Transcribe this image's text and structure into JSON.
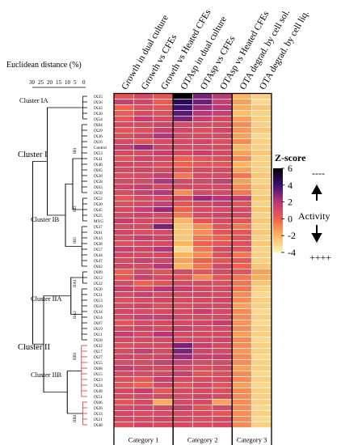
{
  "chart_data": {
    "type": "heatmap",
    "title": "",
    "columns": [
      "Growth in dual culture",
      "Growth vs CFEs",
      "Growth vs Heated CFEs",
      "OTAsp in dual culture",
      "OTAsp vs CFEs",
      "OTAsp vs Heated CFEs",
      "OTA degrad. by cell sol.",
      "OTA degrad. by cell liq."
    ],
    "column_groups": [
      {
        "label": "Category 1",
        "columns": [
          0,
          1,
          2
        ]
      },
      {
        "label": "Category 2",
        "columns": [
          3,
          4,
          5
        ]
      },
      {
        "label": "Category 3",
        "columns": [
          6,
          7
        ]
      }
    ],
    "rows": [
      "IX35",
      "IX56",
      "IX42",
      "IX30",
      "IX54",
      "IX04",
      "IX29",
      "IX36",
      "IX16",
      "Control",
      "IX53",
      "IX41",
      "IX40",
      "IX05",
      "IX28",
      "IX58",
      "IX03",
      "IX59",
      "IX52",
      "IX20",
      "IX45",
      "IX25",
      "MYG",
      "IX37",
      "IX01",
      "IX43",
      "IX38",
      "IX57",
      "IX44",
      "IX47",
      "IX02",
      "IX09",
      "IX12",
      "IX22",
      "IX50",
      "IX31",
      "IX13",
      "IX10",
      "IX34",
      "IX14",
      "IX07",
      "IX19",
      "IX11",
      "IX18",
      "IX32",
      "IX17",
      "IX27",
      "IX55",
      "IX08",
      "IX15",
      "IX23",
      "IX24",
      "IX49",
      "IX51",
      "IX06",
      "IX26",
      "IX33",
      "IX21",
      "IX48"
    ],
    "values": [
      [
        0.5,
        1.0,
        0.5,
        6.0,
        3.0,
        1.8,
        -2.0,
        -2.8
      ],
      [
        1.5,
        1.2,
        0.2,
        4.5,
        3.2,
        1.5,
        -1.5,
        -3.0
      ],
      [
        0.0,
        0.8,
        0.5,
        4.0,
        2.5,
        2.0,
        -1.8,
        -2.5
      ],
      [
        0.2,
        1.0,
        0.8,
        3.5,
        2.0,
        1.5,
        -2.2,
        -2.8
      ],
      [
        0.5,
        1.5,
        1.0,
        3.0,
        1.5,
        1.0,
        -1.5,
        -2.8
      ],
      [
        1.0,
        1.0,
        1.2,
        1.0,
        1.0,
        1.0,
        -1.0,
        -2.8
      ],
      [
        0.5,
        0.8,
        1.5,
        1.2,
        0.8,
        1.2,
        -1.2,
        -2.5
      ],
      [
        0.8,
        1.2,
        2.0,
        1.0,
        1.0,
        1.0,
        -1.5,
        -3.0
      ],
      [
        1.0,
        0.5,
        1.0,
        1.0,
        1.2,
        0.8,
        -1.0,
        -2.8
      ],
      [
        1.5,
        2.5,
        1.2,
        1.0,
        1.0,
        1.0,
        -2.0,
        -2.8
      ],
      [
        1.0,
        1.0,
        1.5,
        1.0,
        1.5,
        1.0,
        -1.5,
        -2.5
      ],
      [
        0.5,
        1.2,
        1.0,
        0.0,
        0.5,
        0.8,
        -1.0,
        -2.8
      ],
      [
        1.2,
        1.0,
        0.8,
        0.0,
        0.5,
        0.5,
        -2.0,
        -2.8
      ],
      [
        1.0,
        1.2,
        1.0,
        0.5,
        1.0,
        1.0,
        -1.5,
        -2.8
      ],
      [
        0.8,
        1.0,
        1.5,
        -0.5,
        1.0,
        1.0,
        -0.5,
        -2.5
      ],
      [
        1.0,
        1.0,
        2.0,
        1.0,
        1.0,
        1.5,
        -1.5,
        -2.8
      ],
      [
        1.2,
        1.5,
        1.0,
        1.0,
        1.0,
        1.0,
        -1.0,
        -2.5
      ],
      [
        1.0,
        1.5,
        2.0,
        -1.0,
        1.0,
        1.0,
        -0.5,
        -2.8
      ],
      [
        0.5,
        1.0,
        1.0,
        1.0,
        2.5,
        2.0,
        1.5,
        -2.5
      ],
      [
        0.8,
        1.0,
        1.5,
        0.5,
        1.0,
        1.5,
        0.5,
        -2.8
      ],
      [
        1.0,
        1.5,
        2.5,
        0.0,
        1.0,
        1.0,
        1.0,
        -2.5
      ],
      [
        1.0,
        1.2,
        1.0,
        -0.5,
        1.0,
        1.2,
        1.0,
        -2.8
      ],
      [
        1.5,
        1.0,
        1.0,
        -2.0,
        0.5,
        1.0,
        0.5,
        -2.5
      ],
      [
        1.0,
        1.0,
        3.0,
        -2.5,
        -1.0,
        0.5,
        -0.5,
        -2.8
      ],
      [
        1.2,
        0.8,
        1.0,
        -2.5,
        -1.0,
        0.5,
        0.5,
        -2.5
      ],
      [
        1.0,
        1.5,
        1.2,
        -2.5,
        -0.5,
        0.0,
        0.5,
        -2.8
      ],
      [
        0.8,
        1.0,
        1.0,
        -2.0,
        0.0,
        0.5,
        0.8,
        -2.5
      ],
      [
        1.5,
        1.2,
        2.0,
        -3.0,
        -0.5,
        1.0,
        0.5,
        -2.8
      ],
      [
        1.0,
        1.0,
        1.0,
        -2.0,
        -1.0,
        0.8,
        -0.5,
        -2.8
      ],
      [
        1.0,
        1.5,
        1.2,
        -1.5,
        0.0,
        0.5,
        0.5,
        -2.8
      ],
      [
        1.2,
        1.0,
        2.0,
        -2.0,
        -0.5,
        1.0,
        0.0,
        -2.5
      ],
      [
        0.0,
        1.0,
        0.5,
        1.0,
        0.5,
        1.0,
        0.5,
        -1.5
      ],
      [
        0.5,
        1.5,
        1.0,
        0.5,
        -1.0,
        0.5,
        -0.5,
        -1.8
      ],
      [
        1.0,
        0.0,
        0.5,
        1.0,
        1.0,
        0.8,
        -0.5,
        -2.5
      ],
      [
        1.5,
        1.0,
        2.0,
        1.5,
        1.0,
        1.0,
        -0.5,
        -2.8
      ],
      [
        1.0,
        1.5,
        1.0,
        1.0,
        1.2,
        1.0,
        -1.0,
        -3.0
      ],
      [
        0.8,
        1.0,
        1.2,
        1.0,
        1.0,
        1.2,
        -1.0,
        -2.8
      ],
      [
        1.0,
        1.2,
        0.8,
        0.8,
        1.0,
        1.0,
        -1.5,
        -2.8
      ],
      [
        1.2,
        1.0,
        1.0,
        1.0,
        1.5,
        1.0,
        -1.0,
        -3.0
      ],
      [
        1.0,
        1.5,
        1.5,
        1.0,
        1.0,
        1.0,
        -1.0,
        -2.8
      ],
      [
        0.5,
        1.0,
        1.0,
        1.0,
        1.2,
        1.5,
        -1.2,
        -3.0
      ],
      [
        1.0,
        1.2,
        1.0,
        1.5,
        1.0,
        1.0,
        -1.0,
        -2.8
      ],
      [
        1.5,
        1.0,
        2.0,
        1.0,
        1.0,
        1.0,
        -1.5,
        -2.8
      ],
      [
        1.0,
        1.0,
        1.0,
        1.0,
        1.0,
        1.2,
        -1.0,
        -3.0
      ],
      [
        0.8,
        1.0,
        1.0,
        3.0,
        1.5,
        1.0,
        -1.0,
        -2.8
      ],
      [
        1.0,
        1.5,
        1.0,
        3.0,
        1.2,
        1.0,
        -1.2,
        -2.8
      ],
      [
        1.2,
        1.0,
        1.2,
        2.5,
        1.5,
        1.5,
        -1.0,
        -3.0
      ],
      [
        1.0,
        1.0,
        1.5,
        1.5,
        1.0,
        1.0,
        -1.0,
        -2.8
      ],
      [
        1.5,
        1.2,
        1.0,
        1.0,
        0.8,
        1.0,
        -1.5,
        -2.8
      ],
      [
        1.0,
        1.0,
        1.0,
        1.5,
        0.5,
        0.8,
        -1.0,
        -3.0
      ],
      [
        0.8,
        0.5,
        1.5,
        1.0,
        1.0,
        1.0,
        -1.0,
        -2.8
      ],
      [
        0.5,
        0.0,
        1.0,
        0.5,
        1.0,
        0.5,
        -1.5,
        -3.0
      ],
      [
        1.0,
        1.5,
        0.5,
        1.0,
        1.0,
        0.8,
        -1.0,
        -2.8
      ],
      [
        1.0,
        1.0,
        1.0,
        1.0,
        1.2,
        1.0,
        -1.0,
        -2.8
      ],
      [
        0.5,
        1.0,
        -1.8,
        1.0,
        1.0,
        -1.5,
        -1.0,
        -2.8
      ],
      [
        1.0,
        1.2,
        1.0,
        1.5,
        0.5,
        1.0,
        -1.0,
        -3.0
      ],
      [
        1.2,
        1.0,
        1.0,
        1.0,
        1.0,
        0.5,
        -1.0,
        -2.8
      ],
      [
        1.0,
        1.0,
        1.2,
        1.0,
        0.8,
        1.0,
        -1.0,
        -3.0
      ],
      [
        0.8,
        1.2,
        1.0,
        1.0,
        1.0,
        1.0,
        -1.0,
        -2.8
      ]
    ],
    "colorbar": {
      "title": "Z-score",
      "range": [
        -4,
        6
      ],
      "ticks": [
        6,
        4,
        2,
        0,
        -2,
        -4
      ]
    },
    "activity_label": "Activity",
    "activity_top": "----",
    "activity_bottom": "++++",
    "dendrogram_axis": {
      "title": "Euclidean distance (%)",
      "ticks": [
        "30",
        "25",
        "20",
        "15",
        "10",
        "5",
        "0"
      ]
    },
    "clusters": [
      {
        "label": "Cluster I",
        "level": 1
      },
      {
        "label": "Cluster IA",
        "level": 2
      },
      {
        "label": "Cluster IB",
        "level": 2
      },
      {
        "label": "Cluster II",
        "level": 1
      },
      {
        "label": "Cluster IIA",
        "level": 2
      },
      {
        "label": "Cluster IIB",
        "level": 2
      },
      {
        "label": "IB1",
        "level": 3
      },
      {
        "label": "IB2",
        "level": 3
      },
      {
        "label": "IB3",
        "level": 3
      },
      {
        "label": "IIA1",
        "level": 3
      },
      {
        "label": "IIA2",
        "level": 3
      },
      {
        "label": "IIB1",
        "level": 3
      },
      {
        "label": "IIB2",
        "level": 3
      }
    ]
  }
}
